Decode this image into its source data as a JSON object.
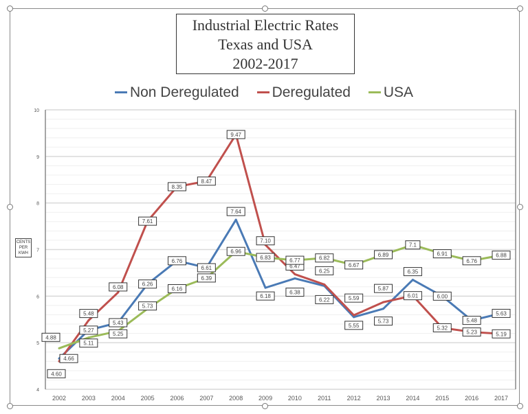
{
  "chart_data": {
    "type": "line",
    "title": [
      "Industrial Electric Rates",
      "Texas and USA",
      "2002-2017"
    ],
    "ylabel": [
      "CENTS",
      "PER",
      "KWH"
    ],
    "xlabel": "",
    "x": [
      "2002",
      "2003",
      "2004",
      "2005",
      "2006",
      "2007",
      "2008",
      "2009",
      "2010",
      "2011",
      "2012",
      "2013",
      "2014",
      "2015",
      "2016",
      "2017"
    ],
    "ylim": [
      4,
      10
    ],
    "yticks": [
      "4",
      "5",
      "6",
      "7",
      "8",
      "9",
      "10"
    ],
    "grid": true,
    "legend_position": "top",
    "series": [
      {
        "name": "Non Deregulated",
        "color": "#4a7ab5",
        "values": [
          4.66,
          5.27,
          5.43,
          6.26,
          6.76,
          6.61,
          7.64,
          6.18,
          6.38,
          6.22,
          5.55,
          5.73,
          6.35,
          6.0,
          5.48,
          5.63
        ],
        "labels": [
          "4.66",
          "5.27",
          "5.43",
          "6.26",
          "6.76",
          "6.61",
          "7.64",
          "6.18",
          "6.38",
          "6.22",
          "5.55",
          "5.73",
          "6.35",
          "6.00",
          "5.48",
          "5.63"
        ]
      },
      {
        "name": "Deregulated",
        "color": "#c0504d",
        "values": [
          4.6,
          5.48,
          6.08,
          7.61,
          8.35,
          8.47,
          9.47,
          7.1,
          6.47,
          6.25,
          5.59,
          5.87,
          6.01,
          5.32,
          5.23,
          5.19
        ],
        "labels": [
          "4.60",
          "5.48",
          "6.08",
          "7.61",
          "8.35",
          "8.47",
          "9.47",
          "7.10",
          "6.47",
          "6.25",
          "5.59",
          "5.87",
          "6.01",
          "5.32",
          "5.23",
          "5.19"
        ]
      },
      {
        "name": "USA",
        "color": "#9bbb59",
        "values": [
          4.88,
          5.11,
          5.25,
          5.73,
          6.16,
          6.39,
          6.96,
          6.83,
          6.77,
          6.82,
          6.67,
          6.89,
          7.1,
          6.91,
          6.76,
          6.88
        ],
        "labels": [
          "4.88",
          "5.11",
          "5.25",
          "5.73",
          "6.16",
          "6.39",
          "6.96",
          "6.83",
          "6.77",
          "6.82",
          "6.67",
          "6.89",
          "7.1",
          "6.91",
          "6.76",
          "6.88"
        ]
      }
    ]
  }
}
